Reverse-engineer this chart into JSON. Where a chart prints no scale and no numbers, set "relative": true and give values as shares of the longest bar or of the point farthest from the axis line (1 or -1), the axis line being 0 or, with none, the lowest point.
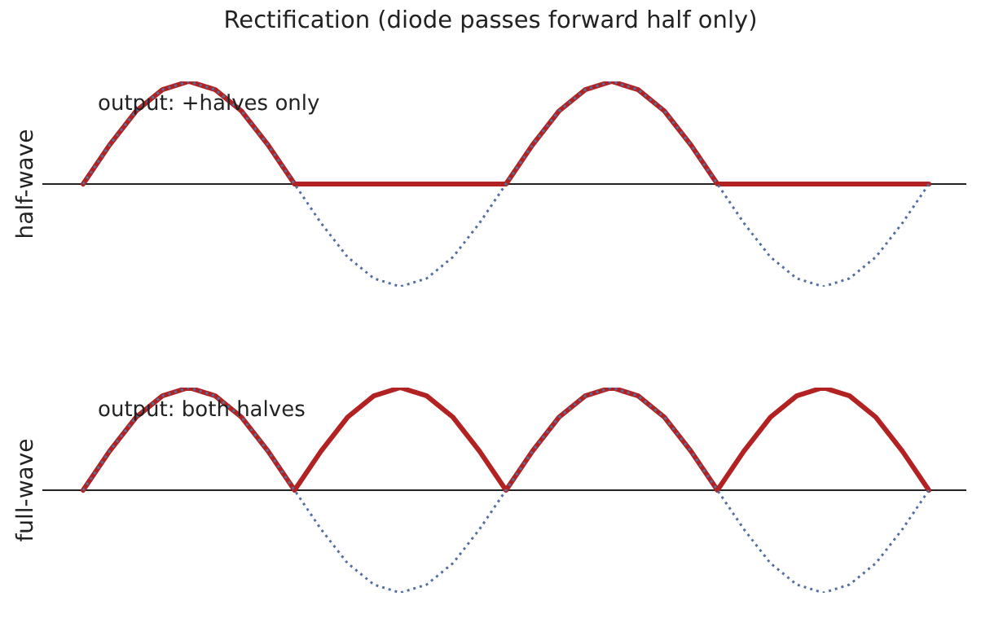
{
  "chart_data": [
    {
      "type": "line",
      "title": "Rectification (diode passes forward half only)",
      "ylabel": "half-wave",
      "relative": true,
      "marker": "none",
      "grid": false,
      "legend": false,
      "tick_labels": false,
      "annotations": [
        "output: +halves only"
      ],
      "categories": [
        null,
        null,
        null,
        null,
        null,
        null,
        null,
        null,
        null,
        null,
        null,
        null,
        null,
        null,
        null,
        null,
        null,
        null,
        null,
        null,
        null,
        null,
        null,
        null,
        null,
        null,
        null,
        null,
        null,
        null,
        null,
        null,
        null
      ],
      "series": [
        {
          "color": "#5470a0",
          "line_style": "dotted",
          "values": [
            0,
            0.38,
            0.71,
            0.92,
            1,
            0.92,
            0.71,
            0.38,
            0,
            -0.38,
            -0.71,
            -0.92,
            -1,
            -0.92,
            -0.71,
            -0.38,
            0,
            0.38,
            0.71,
            0.92,
            1,
            0.92,
            0.71,
            0.38,
            0,
            -0.38,
            -0.71,
            -0.92,
            -1,
            -0.92,
            -0.71,
            -0.38,
            0
          ]
        },
        {
          "color": "#b22222",
          "line_style": "solid",
          "values": [
            0,
            0.38,
            0.71,
            0.92,
            1,
            0.92,
            0.71,
            0.38,
            0,
            0,
            0,
            0,
            0,
            0,
            0,
            0,
            0,
            0.38,
            0.71,
            0.92,
            1,
            0.92,
            0.71,
            0.38,
            0,
            0,
            0,
            0,
            0,
            0,
            0,
            0,
            0
          ]
        }
      ]
    },
    {
      "type": "line",
      "ylabel": "full-wave",
      "relative": true,
      "marker": "none",
      "grid": false,
      "legend": false,
      "tick_labels": false,
      "annotations": [
        "output: both halves"
      ],
      "categories": [
        null,
        null,
        null,
        null,
        null,
        null,
        null,
        null,
        null,
        null,
        null,
        null,
        null,
        null,
        null,
        null,
        null,
        null,
        null,
        null,
        null,
        null,
        null,
        null,
        null,
        null,
        null,
        null,
        null,
        null,
        null,
        null,
        null
      ],
      "series": [
        {
          "color": "#5470a0",
          "line_style": "dotted",
          "values": [
            0,
            0.38,
            0.71,
            0.92,
            1,
            0.92,
            0.71,
            0.38,
            0,
            -0.38,
            -0.71,
            -0.92,
            -1,
            -0.92,
            -0.71,
            -0.38,
            0,
            0.38,
            0.71,
            0.92,
            1,
            0.92,
            0.71,
            0.38,
            0,
            -0.38,
            -0.71,
            -0.92,
            -1,
            -0.92,
            -0.71,
            -0.38,
            0
          ]
        },
        {
          "color": "#b22222",
          "line_style": "solid",
          "values": [
            0,
            0.38,
            0.71,
            0.92,
            1,
            0.92,
            0.71,
            0.38,
            0,
            0.38,
            0.71,
            0.92,
            1,
            0.92,
            0.71,
            0.38,
            0,
            0.38,
            0.71,
            0.92,
            1,
            0.92,
            0.71,
            0.38,
            0,
            0.38,
            0.71,
            0.92,
            1,
            0.92,
            0.71,
            0.38,
            0
          ]
        }
      ]
    }
  ]
}
